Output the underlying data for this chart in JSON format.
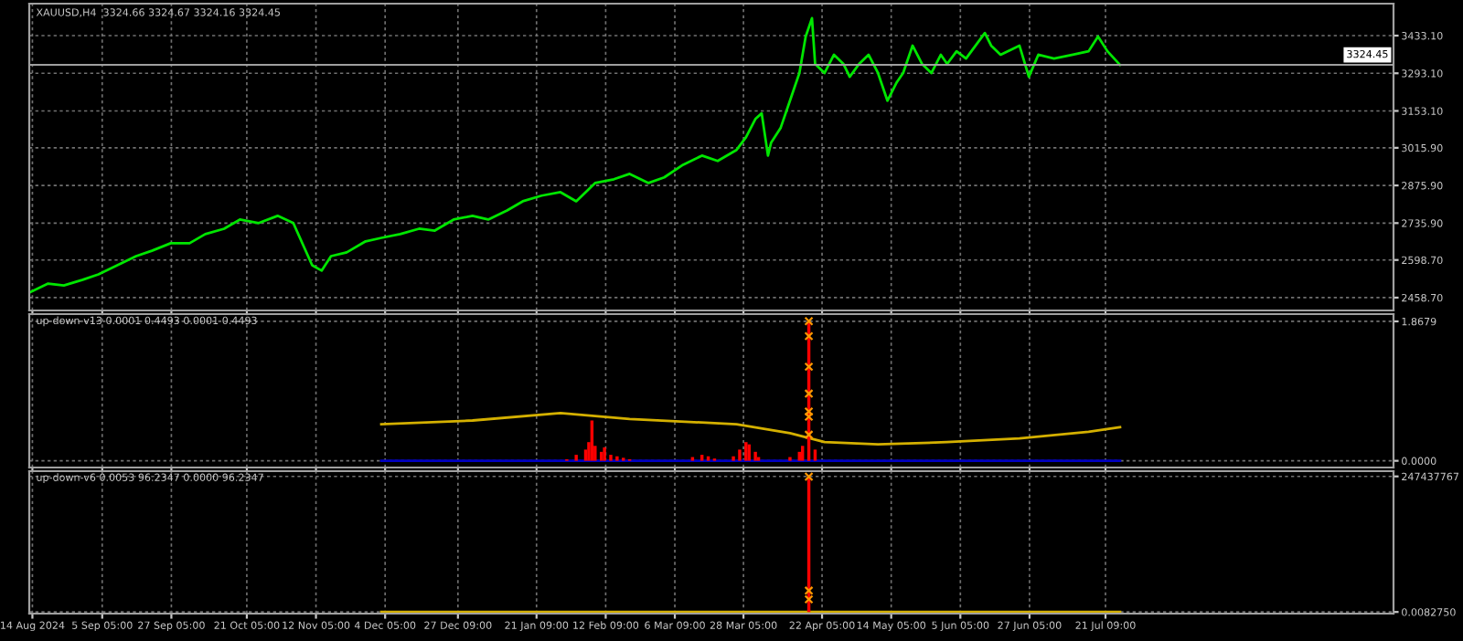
{
  "chart_data": [
    {
      "type": "line",
      "title": "XAUUSD,H4  3324.66 3324.67 3324.16 3324.45",
      "tick_labels": "y",
      "grid": true,
      "xlim": [
        "2024-08-13",
        "2025-10-21"
      ],
      "ylim": [
        2411,
        3552
      ],
      "xticks": [
        {
          "value": "2024-08-14",
          "label": null
        },
        {
          "value": "2024-09-05T05:00",
          "label": null
        },
        {
          "value": "2024-09-27T05:00",
          "label": null
        },
        {
          "value": "2024-10-21T05:00",
          "label": null
        },
        {
          "value": "2024-11-12T05:00",
          "label": null
        },
        {
          "value": "2024-12-04T05:00",
          "label": null
        },
        {
          "value": "2024-12-27T09:00",
          "label": null
        },
        {
          "value": "2025-01-21T09:00",
          "label": null
        },
        {
          "value": "2025-02-12T09:00",
          "label": null
        },
        {
          "value": "2025-03-06T09:00",
          "label": null
        },
        {
          "value": "2025-03-28T05:00",
          "label": null
        },
        {
          "value": "2025-04-22T05:00",
          "label": null
        },
        {
          "value": "2025-05-14T05:00",
          "label": null
        },
        {
          "value": "2025-06-05T05:00",
          "label": null
        },
        {
          "value": "2025-06-27T05:00",
          "label": null
        },
        {
          "value": "2025-07-21T09:00",
          "label": null
        }
      ],
      "yticks": [
        {
          "value": 2458.7,
          "label": "2458.70"
        },
        {
          "value": 2598.7,
          "label": "2598.70"
        },
        {
          "value": 2735.9,
          "label": "2735.90"
        },
        {
          "value": 2875.9,
          "label": "2875.90"
        },
        {
          "value": 3015.9,
          "label": "3015.90"
        },
        {
          "value": 3153.1,
          "label": "3153.10"
        },
        {
          "value": 3293.1,
          "label": "3293.10"
        },
        {
          "value": 3433.1,
          "label": "3433.10"
        }
      ],
      "ref_lines": [
        {
          "axis": "y",
          "value": 3324.45,
          "label": "3324.45",
          "color": "#a0a0a0"
        }
      ],
      "series": [
        {
          "color": "#00e600",
          "x": [
            "2024-08-13",
            "2024-08-19",
            "2024-08-24",
            "2024-08-30",
            "2024-09-04",
            "2024-09-10",
            "2024-09-16",
            "2024-09-21",
            "2024-09-27",
            "2024-10-03",
            "2024-10-08",
            "2024-10-14",
            "2024-10-19",
            "2024-10-25",
            "2024-10-31",
            "2024-11-05",
            "2024-11-11",
            "2024-11-14",
            "2024-11-17",
            "2024-11-22",
            "2024-11-28",
            "2024-12-03",
            "2024-12-09",
            "2024-12-15",
            "2024-12-20",
            "2024-12-26",
            "2025-01-01",
            "2025-01-06",
            "2025-01-12",
            "2025-01-17",
            "2025-01-23",
            "2025-01-29",
            "2025-02-03",
            "2025-02-09",
            "2025-02-15",
            "2025-02-20",
            "2025-02-26",
            "2025-03-03",
            "2025-03-09",
            "2025-03-15",
            "2025-03-20",
            "2025-03-26",
            "2025-03-29",
            "2025-04-01",
            "2025-04-03",
            "2025-04-05",
            "2025-04-06",
            "2025-04-09",
            "2025-04-12",
            "2025-04-15",
            "2025-04-17",
            "2025-04-19",
            "2025-04-20",
            "2025-04-23",
            "2025-04-26",
            "2025-04-29",
            "2025-05-01",
            "2025-05-04",
            "2025-05-07",
            "2025-05-10",
            "2025-05-13",
            "2025-05-16",
            "2025-05-18",
            "2025-05-21",
            "2025-05-24",
            "2025-05-27",
            "2025-05-30",
            "2025-06-01",
            "2025-06-04",
            "2025-06-07",
            "2025-06-13",
            "2025-06-15",
            "2025-06-18",
            "2025-06-24",
            "2025-06-27",
            "2025-06-30",
            "2025-07-05",
            "2025-07-11",
            "2025-07-16",
            "2025-07-19",
            "2025-07-22",
            "2025-07-26"
          ],
          "values": [
            2477,
            2511,
            2504,
            2525,
            2545,
            2579,
            2613,
            2633,
            2661,
            2661,
            2695,
            2715,
            2749,
            2736,
            2763,
            2736,
            2579,
            2559,
            2613,
            2627,
            2668,
            2681,
            2695,
            2715,
            2708,
            2749,
            2763,
            2749,
            2783,
            2817,
            2838,
            2851,
            2817,
            2885,
            2899,
            2919,
            2885,
            2906,
            2953,
            2987,
            2967,
            3008,
            3055,
            3123,
            3144,
            2987,
            3035,
            3089,
            3191,
            3294,
            3430,
            3498,
            3328,
            3294,
            3362,
            3328,
            3280,
            3328,
            3362,
            3294,
            3191,
            3260,
            3294,
            3396,
            3328,
            3294,
            3362,
            3328,
            3375,
            3348,
            3443,
            3396,
            3362,
            3396,
            3280,
            3362,
            3348,
            3362,
            3375,
            3430,
            3375,
            3324
          ]
        }
      ]
    },
    {
      "type": "bar",
      "title": "up-down-v13 0.0001 0.4493 0.0001 0.4493",
      "tick_labels": "y",
      "grid": true,
      "xlim": [
        "2024-08-13",
        "2025-10-21"
      ],
      "ylim": [
        -0.09,
        1.965
      ],
      "xticks": [
        {
          "value": "2024-08-14",
          "label": null
        },
        {
          "value": "2024-09-05T05:00",
          "label": null
        },
        {
          "value": "2024-09-27T05:00",
          "label": null
        },
        {
          "value": "2024-10-21T05:00",
          "label": null
        },
        {
          "value": "2024-11-12T05:00",
          "label": null
        },
        {
          "value": "2024-12-04T05:00",
          "label": null
        },
        {
          "value": "2024-12-27T09:00",
          "label": null
        },
        {
          "value": "2025-01-21T09:00",
          "label": null
        },
        {
          "value": "2025-02-12T09:00",
          "label": null
        },
        {
          "value": "2025-03-06T09:00",
          "label": null
        },
        {
          "value": "2025-03-28T05:00",
          "label": null
        },
        {
          "value": "2025-04-22T05:00",
          "label": null
        },
        {
          "value": "2025-05-14T05:00",
          "label": null
        },
        {
          "value": "2025-06-05T05:00",
          "label": null
        },
        {
          "value": "2025-06-27T05:00",
          "label": null
        },
        {
          "value": "2025-07-21T09:00",
          "label": null
        }
      ],
      "yticks": [
        {
          "value": 0,
          "label": "0.0000"
        },
        1.8679
      ],
      "series": [
        {
          "type": "line",
          "color": "#0000c0",
          "x": [
            "2024-12-03",
            "2025-07-26"
          ],
          "values": [
            0,
            0
          ]
        },
        {
          "type": "bar",
          "color": "#ff0000",
          "x": [
            "2025-01-31",
            "2025-02-03",
            "2025-02-06",
            "2025-02-07",
            "2025-02-08",
            "2025-02-09",
            "2025-02-11",
            "2025-02-12",
            "2025-02-14",
            "2025-02-16",
            "2025-02-18",
            "2025-02-20",
            "2025-03-12",
            "2025-03-15",
            "2025-03-17",
            "2025-03-19",
            "2025-03-25",
            "2025-03-27",
            "2025-03-29",
            "2025-03-30",
            "2025-04-01",
            "2025-04-02",
            "2025-04-12",
            "2025-04-15",
            "2025-04-16",
            "2025-04-18",
            "2025-04-20"
          ],
          "values": [
            0.02,
            0.08,
            0.15,
            0.25,
            0.54,
            0.2,
            0.12,
            0.18,
            0.08,
            0.06,
            0.04,
            0.02,
            0.05,
            0.08,
            0.06,
            0.03,
            0.06,
            0.15,
            0.25,
            0.22,
            0.12,
            0.05,
            0.05,
            0.12,
            0.2,
            1.87,
            0.15
          ]
        },
        {
          "type": "line",
          "color": "#d4b000",
          "x": [
            "2024-12-03",
            "2025-01-01",
            "2025-01-29",
            "2025-02-20",
            "2025-03-26",
            "2025-04-12",
            "2025-04-23",
            "2025-05-10",
            "2025-06-01",
            "2025-06-24",
            "2025-07-16",
            "2025-07-26"
          ],
          "values": [
            0.49,
            0.54,
            0.64,
            0.56,
            0.49,
            0.37,
            0.25,
            0.22,
            0.25,
            0.3,
            0.39,
            0.45
          ]
        },
        {
          "type": "scatter",
          "marker": "cross",
          "color": "#ff9900",
          "x": [
            "2025-04-18",
            "2025-04-18",
            "2025-04-18",
            "2025-04-18",
            "2025-04-18",
            "2025-04-18",
            "2025-04-18"
          ],
          "values": [
            1.87,
            1.67,
            1.26,
            0.9,
            0.66,
            0.59,
            0.35
          ]
        }
      ]
    },
    {
      "type": "bar",
      "title": "up-down-v6 0.0053 96.2347 0.0000 96.2347",
      "grid": true,
      "xlim": [
        "2024-08-13",
        "2025-10-21"
      ],
      "ylim": [
        -3000000,
        257000000
      ],
      "xticks": [
        {
          "value": "2024-08-14",
          "label": "14 Aug 2024"
        },
        {
          "value": "2024-09-05T05:00",
          "label": "5 Sep 05:00"
        },
        {
          "value": "2024-09-27T05:00",
          "label": "27 Sep 05:00"
        },
        {
          "value": "2024-10-21T05:00",
          "label": "21 Oct 05:00"
        },
        {
          "value": "2024-11-12T05:00",
          "label": "12 Nov 05:00"
        },
        {
          "value": "2024-12-04T05:00",
          "label": "4 Dec 05:00"
        },
        {
          "value": "2024-12-27T09:00",
          "label": "27 Dec 09:00"
        },
        {
          "value": "2025-01-21T09:00",
          "label": "21 Jan 09:00"
        },
        {
          "value": "2025-02-12T09:00",
          "label": "12 Feb 09:00"
        },
        {
          "value": "2025-03-06T09:00",
          "label": "6 Mar 09:00"
        },
        {
          "value": "2025-03-28T05:00",
          "label": "28 Mar 05:00"
        },
        {
          "value": "2025-04-22T05:00",
          "label": "22 Apr 05:00"
        },
        {
          "value": "2025-05-14T05:00",
          "label": "14 May 05:00"
        },
        {
          "value": "2025-06-05T05:00",
          "label": "5 Jun 05:00"
        },
        {
          "value": "2025-06-27T05:00",
          "label": "27 Jun 05:00"
        },
        {
          "value": "2025-07-21T09:00",
          "label": "21 Jul 09:00"
        }
      ],
      "yticks": [
        {
          "value": 0.008275,
          "label": "0.0082750"
        },
        247437767
      ],
      "series": [
        {
          "type": "line",
          "color": "#d4b000",
          "x": [
            "2024-12-03",
            "2025-07-26"
          ],
          "values": [
            0,
            0
          ]
        },
        {
          "type": "bar",
          "color": "#ff0000",
          "x": [
            "2025-04-18"
          ],
          "values": [
            247000000
          ]
        },
        {
          "type": "scatter",
          "marker": "cross",
          "color": "#ff9900",
          "x": [
            "2025-04-18",
            "2025-04-18",
            "2025-04-18"
          ],
          "values": [
            247000000,
            39000000,
            23000000
          ]
        }
      ]
    }
  ]
}
